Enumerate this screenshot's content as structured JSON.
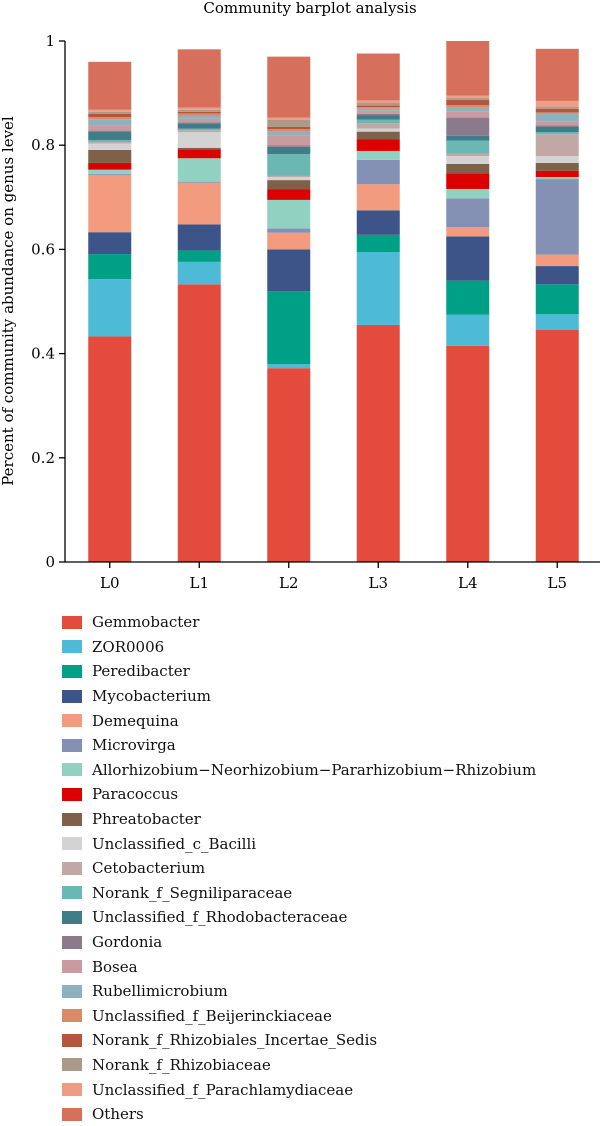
{
  "chart_data": {
    "type": "bar",
    "stacked": true,
    "title": "Community barplot analysis",
    "xlabel": "",
    "ylabel": "Percent of community abundance on genus level",
    "ylim": [
      0,
      1
    ],
    "yticks": [
      "0",
      "0.2",
      "0.4",
      "0.6",
      "0.8",
      "1"
    ],
    "categories": [
      "L0",
      "L1",
      "L2",
      "L3",
      "L4",
      "L5"
    ],
    "legend_position": "bottom",
    "series": [
      {
        "name": "Gemmobacter",
        "color": "#e34c3c",
        "values": [
          0.433,
          0.533,
          0.372,
          0.455,
          0.415,
          0.446
        ]
      },
      {
        "name": "ZOR0006",
        "color": "#4dbbd5",
        "values": [
          0.11,
          0.043,
          0.008,
          0.14,
          0.06,
          0.03
        ]
      },
      {
        "name": "Peredibacter",
        "color": "#00a087",
        "values": [
          0.048,
          0.022,
          0.14,
          0.033,
          0.065,
          0.057
        ]
      },
      {
        "name": "Mycobacterium",
        "color": "#3c5488",
        "values": [
          0.042,
          0.05,
          0.08,
          0.047,
          0.085,
          0.035
        ]
      },
      {
        "name": "Demequina",
        "color": "#f39b7f",
        "values": [
          0.11,
          0.08,
          0.032,
          0.05,
          0.018,
          0.022
        ]
      },
      {
        "name": "Microvirga",
        "color": "#8491b4",
        "values": [
          0.002,
          0.002,
          0.008,
          0.047,
          0.055,
          0.145
        ]
      },
      {
        "name": "Allorhizobium−Neorhizobium−Pararhizobium−Rhizobium",
        "color": "#91d1c2",
        "values": [
          0.008,
          0.045,
          0.055,
          0.017,
          0.018,
          0.004
        ]
      },
      {
        "name": "Paracoccus",
        "color": "#dc0000",
        "values": [
          0.013,
          0.017,
          0.02,
          0.022,
          0.03,
          0.012
        ]
      },
      {
        "name": "Phreatobacter",
        "color": "#7e6148",
        "values": [
          0.025,
          0.003,
          0.018,
          0.015,
          0.018,
          0.015
        ]
      },
      {
        "name": "Unclassified_c_Bacilli",
        "color": "#d3d3d3",
        "values": [
          0.012,
          0.03,
          0.006,
          0.006,
          0.015,
          0.013
        ]
      },
      {
        "name": "Cetobacterium",
        "color": "#c2a8a4",
        "values": [
          0.003,
          0.004,
          0.002,
          0.01,
          0.005,
          0.042
        ]
      },
      {
        "name": "Norank_f_Segniliparaceae",
        "color": "#6ab7b3",
        "values": [
          0.004,
          0.003,
          0.042,
          0.007,
          0.025,
          0.004
        ]
      },
      {
        "name": "Unclassified_f_Rhodobacteraceae",
        "color": "#3f7d88",
        "values": [
          0.016,
          0.01,
          0.014,
          0.008,
          0.009,
          0.01
        ]
      },
      {
        "name": "Gordonia",
        "color": "#8b7a8c",
        "values": [
          0.002,
          0.002,
          0.003,
          0.003,
          0.035,
          0.003
        ]
      },
      {
        "name": "Bosea",
        "color": "#c99aa0",
        "values": [
          0.01,
          0.007,
          0.018,
          0.006,
          0.012,
          0.008
        ]
      },
      {
        "name": "Rubellimicrobium",
        "color": "#8eb1bd",
        "values": [
          0.012,
          0.006,
          0.008,
          0.004,
          0.007,
          0.014
        ]
      },
      {
        "name": "Unclassified_f_Beijerinckiaceae",
        "color": "#d98a69",
        "values": [
          0.004,
          0.004,
          0.005,
          0.003,
          0.005,
          0.003
        ]
      },
      {
        "name": "Norank_f_Rhizobiales_Incertae_Sedis",
        "color": "#b5553b",
        "values": [
          0.006,
          0.003,
          0.004,
          0.003,
          0.01,
          0.007
        ]
      },
      {
        "name": "Norank_f_Rhizobiaceae",
        "color": "#a99a8a",
        "values": [
          0.004,
          0.004,
          0.014,
          0.005,
          0.004,
          0.004
        ]
      },
      {
        "name": "Unclassified_f_Parachlamydiaceae",
        "color": "#ee9c86",
        "values": [
          0.004,
          0.004,
          0.004,
          0.005,
          0.004,
          0.011
        ]
      },
      {
        "name": "Others",
        "color": "#d6705c",
        "values": [
          0.092,
          0.112,
          0.117,
          0.09,
          0.105,
          0.1
        ]
      }
    ]
  }
}
